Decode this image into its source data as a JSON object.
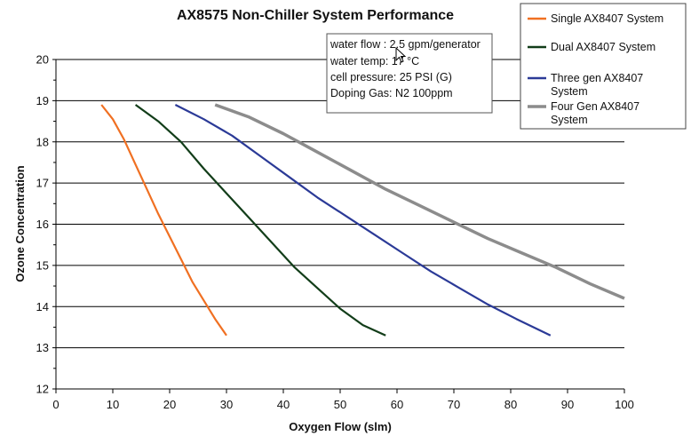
{
  "chart_data": {
    "type": "line",
    "title": "AX8575 Non-Chiller System Performance",
    "xlabel": "Oxygen Flow (slm)",
    "ylabel": "Ozone Concentration",
    "xlim": [
      0,
      100
    ],
    "ylim": [
      12,
      20
    ],
    "xticks": [
      0,
      10,
      20,
      30,
      40,
      50,
      60,
      70,
      80,
      90,
      100
    ],
    "yticks": [
      12,
      13,
      14,
      15,
      16,
      17,
      18,
      19,
      20
    ],
    "grid": "horizontal",
    "legend_position": "top-right",
    "series": [
      {
        "name": "Single AX8407 System",
        "legend_lines": [
          "Single AX8407 System"
        ],
        "color": "#f07022",
        "x": [
          8,
          10,
          12,
          14,
          16,
          18,
          20,
          22,
          24,
          26,
          28,
          30
        ],
        "y": [
          18.9,
          18.55,
          18.05,
          17.45,
          16.85,
          16.25,
          15.7,
          15.15,
          14.6,
          14.15,
          13.7,
          13.3
        ]
      },
      {
        "name": "Dual AX8407 System",
        "legend_lines": [
          "Dual AX8407 System"
        ],
        "color": "#123d19",
        "x": [
          14,
          18,
          22,
          26,
          30,
          34,
          38,
          42,
          46,
          50,
          54,
          58
        ],
        "y": [
          18.9,
          18.5,
          18.0,
          17.35,
          16.75,
          16.15,
          15.55,
          14.95,
          14.45,
          13.95,
          13.55,
          13.3
        ]
      },
      {
        "name": "Three gen AX8407 System",
        "legend_lines": [
          "Three gen AX8407",
          "System"
        ],
        "color": "#2b3a97",
        "x": [
          21,
          26,
          31,
          36,
          41,
          46,
          51,
          56,
          61,
          66,
          71,
          76,
          81,
          87
        ],
        "y": [
          18.9,
          18.55,
          18.15,
          17.65,
          17.15,
          16.65,
          16.2,
          15.75,
          15.3,
          14.85,
          14.45,
          14.05,
          13.7,
          13.3
        ]
      },
      {
        "name": "Four Gen AX8407 System",
        "legend_lines": [
          "Four Gen AX8407",
          "System"
        ],
        "color": "#8c8c8c",
        "x": [
          28,
          34,
          40,
          46,
          52,
          58,
          64,
          70,
          76,
          82,
          88,
          94,
          100
        ],
        "y": [
          18.9,
          18.6,
          18.2,
          17.75,
          17.3,
          16.85,
          16.45,
          16.05,
          15.65,
          15.3,
          14.95,
          14.55,
          14.2
        ]
      }
    ],
    "annotation": {
      "lines": [
        "water flow : 2.5 gpm/generator",
        "water temp: 17 °C",
        "cell pressure: 25 PSI (G)",
        "Doping Gas: N2 100ppm"
      ]
    }
  }
}
